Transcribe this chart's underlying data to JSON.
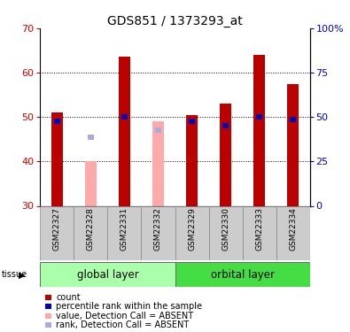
{
  "title": "GDS851 / 1373293_at",
  "samples": [
    "GSM22327",
    "GSM22328",
    "GSM22331",
    "GSM22332",
    "GSM22329",
    "GSM22330",
    "GSM22333",
    "GSM22334"
  ],
  "count_values": [
    51.0,
    null,
    63.5,
    null,
    50.5,
    53.0,
    64.0,
    57.5
  ],
  "rank_values": [
    49.0,
    null,
    50.0,
    null,
    49.0,
    48.0,
    50.0,
    49.5
  ],
  "absent_count_values": [
    null,
    40.0,
    null,
    49.0,
    null,
    null,
    null,
    null
  ],
  "absent_rank_values": [
    null,
    45.5,
    null,
    47.0,
    null,
    null,
    null,
    null
  ],
  "ylim": [
    30,
    70
  ],
  "yticks_left": [
    30,
    40,
    50,
    60,
    70
  ],
  "yticks_right": [
    0,
    25,
    50,
    75,
    100
  ],
  "count_color": "#BB0000",
  "rank_color": "#0000BB",
  "absent_count_color": "#FFAAAA",
  "absent_rank_color": "#AAAADD",
  "ylabel_color": "#CC0000",
  "y2label_color": "#0000CC",
  "group_box_color": "#CCCCCC",
  "global_layer_color": "#AAFFAA",
  "orbital_layer_color": "#44DD44",
  "title_fontsize": 10,
  "tick_fontsize": 8,
  "legend_fontsize": 7,
  "group_label_fontsize": 8.5,
  "bar_width": 0.35,
  "rank_bar_width": 0.2
}
